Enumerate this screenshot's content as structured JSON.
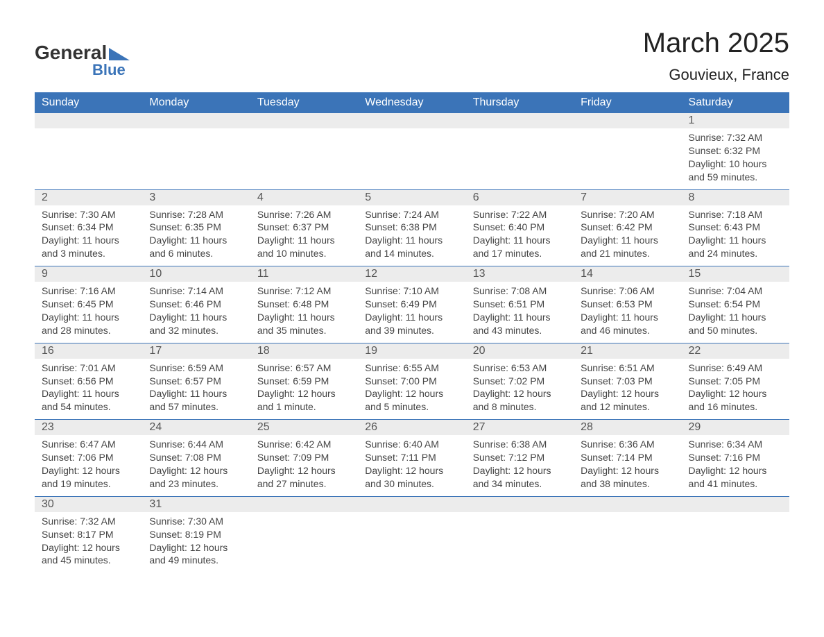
{
  "brand": {
    "name": "General",
    "sub": "Blue",
    "arrow_color": "#3b74b8"
  },
  "title": "March 2025",
  "location": "Gouvieux, France",
  "header_bg": "#3b74b8",
  "band_bg": "#ececec",
  "day_headers": [
    "Sunday",
    "Monday",
    "Tuesday",
    "Wednesday",
    "Thursday",
    "Friday",
    "Saturday"
  ],
  "weeks": [
    [
      null,
      null,
      null,
      null,
      null,
      null,
      {
        "n": "1",
        "sr": "Sunrise: 7:32 AM",
        "ss": "Sunset: 6:32 PM",
        "d1": "Daylight: 10 hours",
        "d2": "and 59 minutes."
      }
    ],
    [
      {
        "n": "2",
        "sr": "Sunrise: 7:30 AM",
        "ss": "Sunset: 6:34 PM",
        "d1": "Daylight: 11 hours",
        "d2": "and 3 minutes."
      },
      {
        "n": "3",
        "sr": "Sunrise: 7:28 AM",
        "ss": "Sunset: 6:35 PM",
        "d1": "Daylight: 11 hours",
        "d2": "and 6 minutes."
      },
      {
        "n": "4",
        "sr": "Sunrise: 7:26 AM",
        "ss": "Sunset: 6:37 PM",
        "d1": "Daylight: 11 hours",
        "d2": "and 10 minutes."
      },
      {
        "n": "5",
        "sr": "Sunrise: 7:24 AM",
        "ss": "Sunset: 6:38 PM",
        "d1": "Daylight: 11 hours",
        "d2": "and 14 minutes."
      },
      {
        "n": "6",
        "sr": "Sunrise: 7:22 AM",
        "ss": "Sunset: 6:40 PM",
        "d1": "Daylight: 11 hours",
        "d2": "and 17 minutes."
      },
      {
        "n": "7",
        "sr": "Sunrise: 7:20 AM",
        "ss": "Sunset: 6:42 PM",
        "d1": "Daylight: 11 hours",
        "d2": "and 21 minutes."
      },
      {
        "n": "8",
        "sr": "Sunrise: 7:18 AM",
        "ss": "Sunset: 6:43 PM",
        "d1": "Daylight: 11 hours",
        "d2": "and 24 minutes."
      }
    ],
    [
      {
        "n": "9",
        "sr": "Sunrise: 7:16 AM",
        "ss": "Sunset: 6:45 PM",
        "d1": "Daylight: 11 hours",
        "d2": "and 28 minutes."
      },
      {
        "n": "10",
        "sr": "Sunrise: 7:14 AM",
        "ss": "Sunset: 6:46 PM",
        "d1": "Daylight: 11 hours",
        "d2": "and 32 minutes."
      },
      {
        "n": "11",
        "sr": "Sunrise: 7:12 AM",
        "ss": "Sunset: 6:48 PM",
        "d1": "Daylight: 11 hours",
        "d2": "and 35 minutes."
      },
      {
        "n": "12",
        "sr": "Sunrise: 7:10 AM",
        "ss": "Sunset: 6:49 PM",
        "d1": "Daylight: 11 hours",
        "d2": "and 39 minutes."
      },
      {
        "n": "13",
        "sr": "Sunrise: 7:08 AM",
        "ss": "Sunset: 6:51 PM",
        "d1": "Daylight: 11 hours",
        "d2": "and 43 minutes."
      },
      {
        "n": "14",
        "sr": "Sunrise: 7:06 AM",
        "ss": "Sunset: 6:53 PM",
        "d1": "Daylight: 11 hours",
        "d2": "and 46 minutes."
      },
      {
        "n": "15",
        "sr": "Sunrise: 7:04 AM",
        "ss": "Sunset: 6:54 PM",
        "d1": "Daylight: 11 hours",
        "d2": "and 50 minutes."
      }
    ],
    [
      {
        "n": "16",
        "sr": "Sunrise: 7:01 AM",
        "ss": "Sunset: 6:56 PM",
        "d1": "Daylight: 11 hours",
        "d2": "and 54 minutes."
      },
      {
        "n": "17",
        "sr": "Sunrise: 6:59 AM",
        "ss": "Sunset: 6:57 PM",
        "d1": "Daylight: 11 hours",
        "d2": "and 57 minutes."
      },
      {
        "n": "18",
        "sr": "Sunrise: 6:57 AM",
        "ss": "Sunset: 6:59 PM",
        "d1": "Daylight: 12 hours",
        "d2": "and 1 minute."
      },
      {
        "n": "19",
        "sr": "Sunrise: 6:55 AM",
        "ss": "Sunset: 7:00 PM",
        "d1": "Daylight: 12 hours",
        "d2": "and 5 minutes."
      },
      {
        "n": "20",
        "sr": "Sunrise: 6:53 AM",
        "ss": "Sunset: 7:02 PM",
        "d1": "Daylight: 12 hours",
        "d2": "and 8 minutes."
      },
      {
        "n": "21",
        "sr": "Sunrise: 6:51 AM",
        "ss": "Sunset: 7:03 PM",
        "d1": "Daylight: 12 hours",
        "d2": "and 12 minutes."
      },
      {
        "n": "22",
        "sr": "Sunrise: 6:49 AM",
        "ss": "Sunset: 7:05 PM",
        "d1": "Daylight: 12 hours",
        "d2": "and 16 minutes."
      }
    ],
    [
      {
        "n": "23",
        "sr": "Sunrise: 6:47 AM",
        "ss": "Sunset: 7:06 PM",
        "d1": "Daylight: 12 hours",
        "d2": "and 19 minutes."
      },
      {
        "n": "24",
        "sr": "Sunrise: 6:44 AM",
        "ss": "Sunset: 7:08 PM",
        "d1": "Daylight: 12 hours",
        "d2": "and 23 minutes."
      },
      {
        "n": "25",
        "sr": "Sunrise: 6:42 AM",
        "ss": "Sunset: 7:09 PM",
        "d1": "Daylight: 12 hours",
        "d2": "and 27 minutes."
      },
      {
        "n": "26",
        "sr": "Sunrise: 6:40 AM",
        "ss": "Sunset: 7:11 PM",
        "d1": "Daylight: 12 hours",
        "d2": "and 30 minutes."
      },
      {
        "n": "27",
        "sr": "Sunrise: 6:38 AM",
        "ss": "Sunset: 7:12 PM",
        "d1": "Daylight: 12 hours",
        "d2": "and 34 minutes."
      },
      {
        "n": "28",
        "sr": "Sunrise: 6:36 AM",
        "ss": "Sunset: 7:14 PM",
        "d1": "Daylight: 12 hours",
        "d2": "and 38 minutes."
      },
      {
        "n": "29",
        "sr": "Sunrise: 6:34 AM",
        "ss": "Sunset: 7:16 PM",
        "d1": "Daylight: 12 hours",
        "d2": "and 41 minutes."
      }
    ],
    [
      {
        "n": "30",
        "sr": "Sunrise: 7:32 AM",
        "ss": "Sunset: 8:17 PM",
        "d1": "Daylight: 12 hours",
        "d2": "and 45 minutes."
      },
      {
        "n": "31",
        "sr": "Sunrise: 7:30 AM",
        "ss": "Sunset: 8:19 PM",
        "d1": "Daylight: 12 hours",
        "d2": "and 49 minutes."
      },
      null,
      null,
      null,
      null,
      null
    ]
  ]
}
